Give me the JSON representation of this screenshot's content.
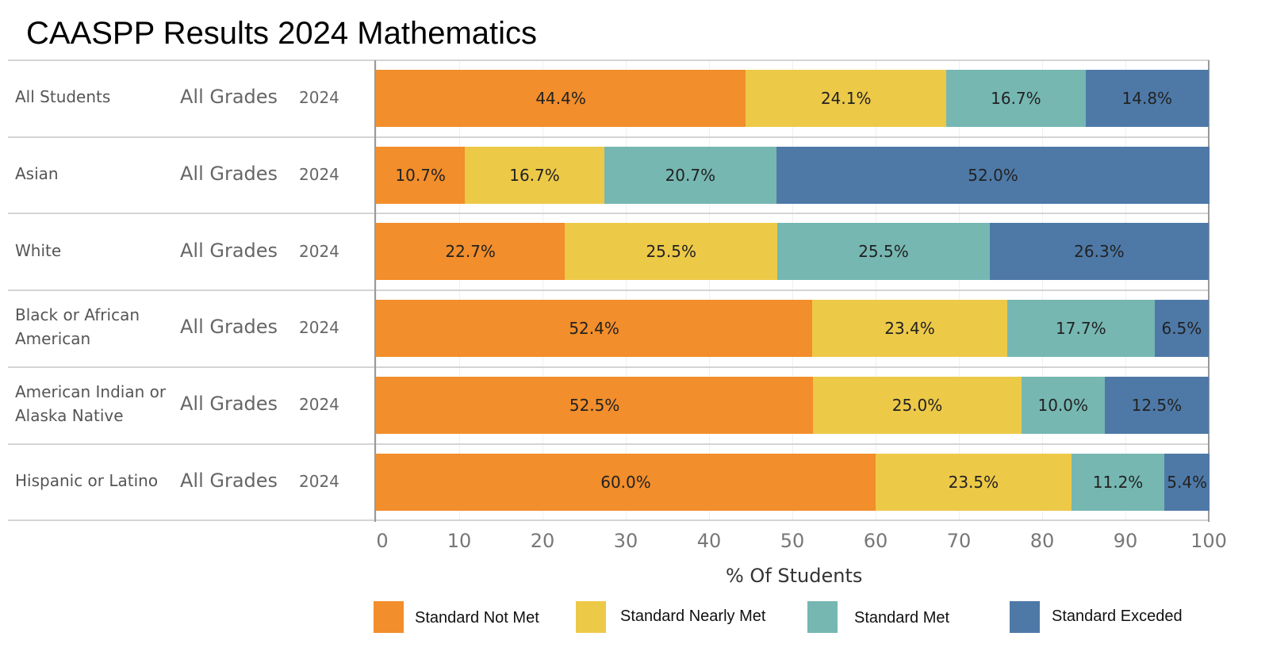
{
  "chart_data": {
    "type": "bar",
    "orientation": "horizontal",
    "stacked": true,
    "title": "CAASPP Results 2024 Mathematics",
    "xlabel": "% Of Students",
    "xlim": [
      0,
      100
    ],
    "xticks": [
      "0",
      "10",
      "20",
      "30",
      "40",
      "50",
      "60",
      "70",
      "80",
      "90",
      "100"
    ],
    "categories": [
      {
        "group": "All Students",
        "grade": "All Grades",
        "year": "2024"
      },
      {
        "group": "Asian",
        "grade": "All Grades",
        "year": "2024"
      },
      {
        "group": "White",
        "grade": "All Grades",
        "year": "2024"
      },
      {
        "group": "Black or African American",
        "grade": "All Grades",
        "year": "2024"
      },
      {
        "group": "American Indian or Alaska Native",
        "grade": "All Grades",
        "year": "2024"
      },
      {
        "group": "Hispanic or Latino",
        "grade": "All Grades",
        "year": "2024"
      }
    ],
    "series": [
      {
        "name": "Standard Not Met",
        "color": "#f28e2b",
        "values": [
          44.4,
          10.7,
          22.7,
          52.4,
          52.5,
          60.0
        ]
      },
      {
        "name": "Standard Nearly Met",
        "color": "#edc948",
        "values": [
          24.1,
          16.7,
          25.5,
          23.4,
          25.0,
          23.5
        ]
      },
      {
        "name": "Standard Met",
        "color": "#76b7b2",
        "values": [
          16.7,
          20.7,
          25.5,
          17.7,
          10.0,
          11.2
        ]
      },
      {
        "name": "Standard Exceded",
        "color": "#4e79a7",
        "values": [
          14.8,
          52.0,
          26.3,
          6.5,
          12.5,
          5.4
        ]
      }
    ],
    "legend_position": "bottom"
  }
}
